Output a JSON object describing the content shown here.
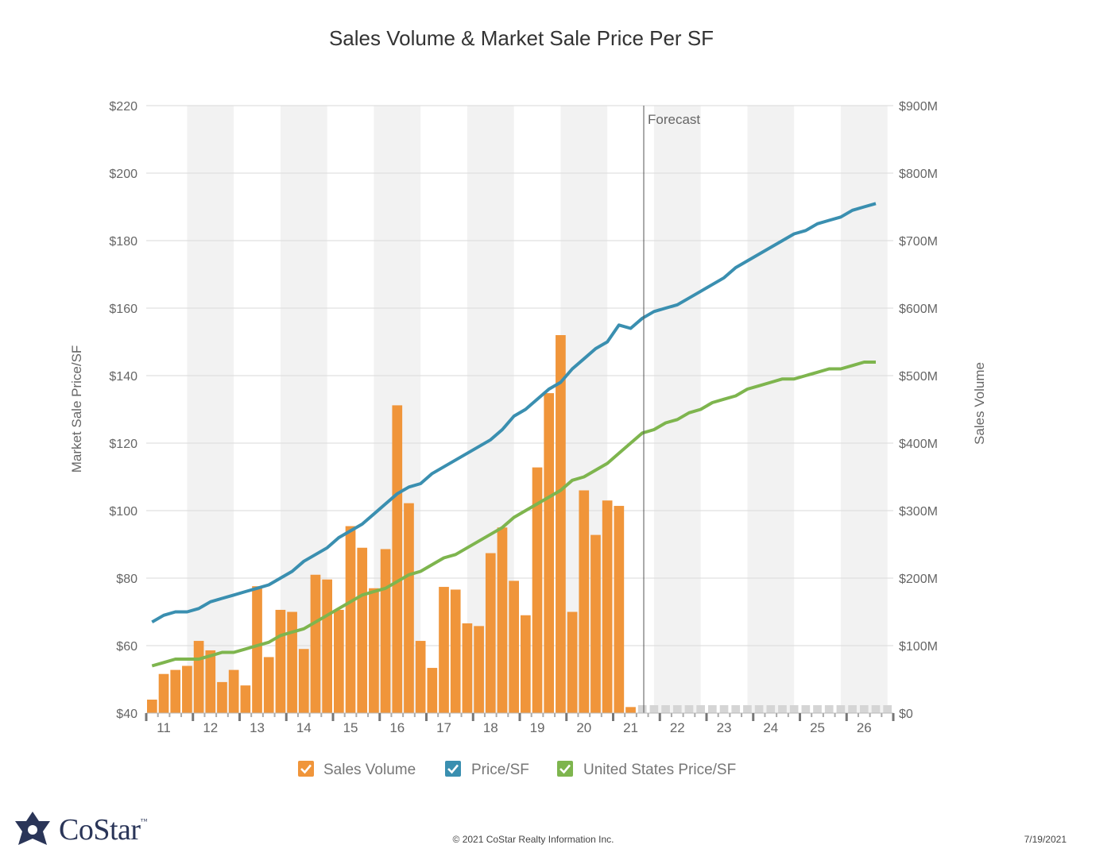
{
  "colors": {
    "sales_volume": "#F0953A",
    "price_sf": "#3A8FB0",
    "us_price_sf": "#7EB54E",
    "band": "#F2F2F2",
    "grid": "#D9D9D9",
    "forecast_line": "#555555"
  },
  "footer": {
    "copyright": "© 2021 CoStar Realty Information Inc.",
    "date": "7/19/2021",
    "logo_text": "CoStar",
    "logo_tm": "™"
  },
  "chart_data": {
    "type": "bar+line",
    "title": "Sales Volume & Market Sale Price Per SF",
    "ylabel_left": "Market Sale Price/SF",
    "ylabel_right": "Sales Volume",
    "forecast_label": "Forecast",
    "forecast_start": "21",
    "ylim_left": [
      40,
      220
    ],
    "ylim_right": [
      0,
      900
    ],
    "yticks_left": [
      "$40",
      "$60",
      "$80",
      "$100",
      "$120",
      "$140",
      "$160",
      "$180",
      "$200",
      "$220"
    ],
    "yticks_right": [
      "$0",
      "$100M",
      "$200M",
      "$300M",
      "$400M",
      "$500M",
      "$600M",
      "$700M",
      "$800M",
      "$900M"
    ],
    "years": [
      "11",
      "12",
      "13",
      "14",
      "15",
      "16",
      "17",
      "18",
      "19",
      "20",
      "21",
      "22",
      "23",
      "24",
      "25",
      "26"
    ],
    "legend": [
      "Sales Volume",
      "Price/SF",
      "United States Price/SF"
    ],
    "grid": true,
    "legend_position": "bottom",
    "quarters_per_year": 4,
    "sales_volume_millions": [
      20,
      58,
      64,
      70,
      107,
      93,
      46,
      64,
      41,
      188,
      83,
      153,
      150,
      95,
      205,
      198,
      153,
      277,
      245,
      185,
      243,
      456,
      311,
      107,
      67,
      187,
      183,
      133,
      129,
      237,
      275,
      196,
      145,
      364,
      474,
      560,
      150,
      330,
      264,
      315,
      307,
      9
    ],
    "price_sf": [
      67,
      69,
      70,
      70,
      71,
      73,
      74,
      75,
      76,
      77,
      78,
      80,
      82,
      85,
      87,
      89,
      92,
      94,
      96,
      99,
      102,
      105,
      107,
      108,
      111,
      113,
      115,
      117,
      119,
      121,
      124,
      128,
      130,
      133,
      136,
      138,
      142,
      145,
      148,
      150,
      155,
      154,
      157,
      159,
      160,
      161,
      163,
      165,
      167,
      169,
      172,
      174,
      176,
      178,
      180,
      182,
      183,
      185,
      186,
      187,
      189,
      190,
      191
    ],
    "us_price_sf": [
      54,
      55,
      56,
      56,
      56,
      57,
      58,
      58,
      59,
      60,
      61,
      63,
      64,
      65,
      67,
      69,
      71,
      73,
      75,
      76,
      77,
      79,
      81,
      82,
      84,
      86,
      87,
      89,
      91,
      93,
      95,
      98,
      100,
      102,
      104,
      106,
      109,
      110,
      112,
      114,
      117,
      120,
      123,
      124,
      126,
      127,
      129,
      130,
      132,
      133,
      134,
      136,
      137,
      138,
      139,
      139,
      140,
      141,
      142,
      142,
      143,
      144,
      144
    ]
  }
}
